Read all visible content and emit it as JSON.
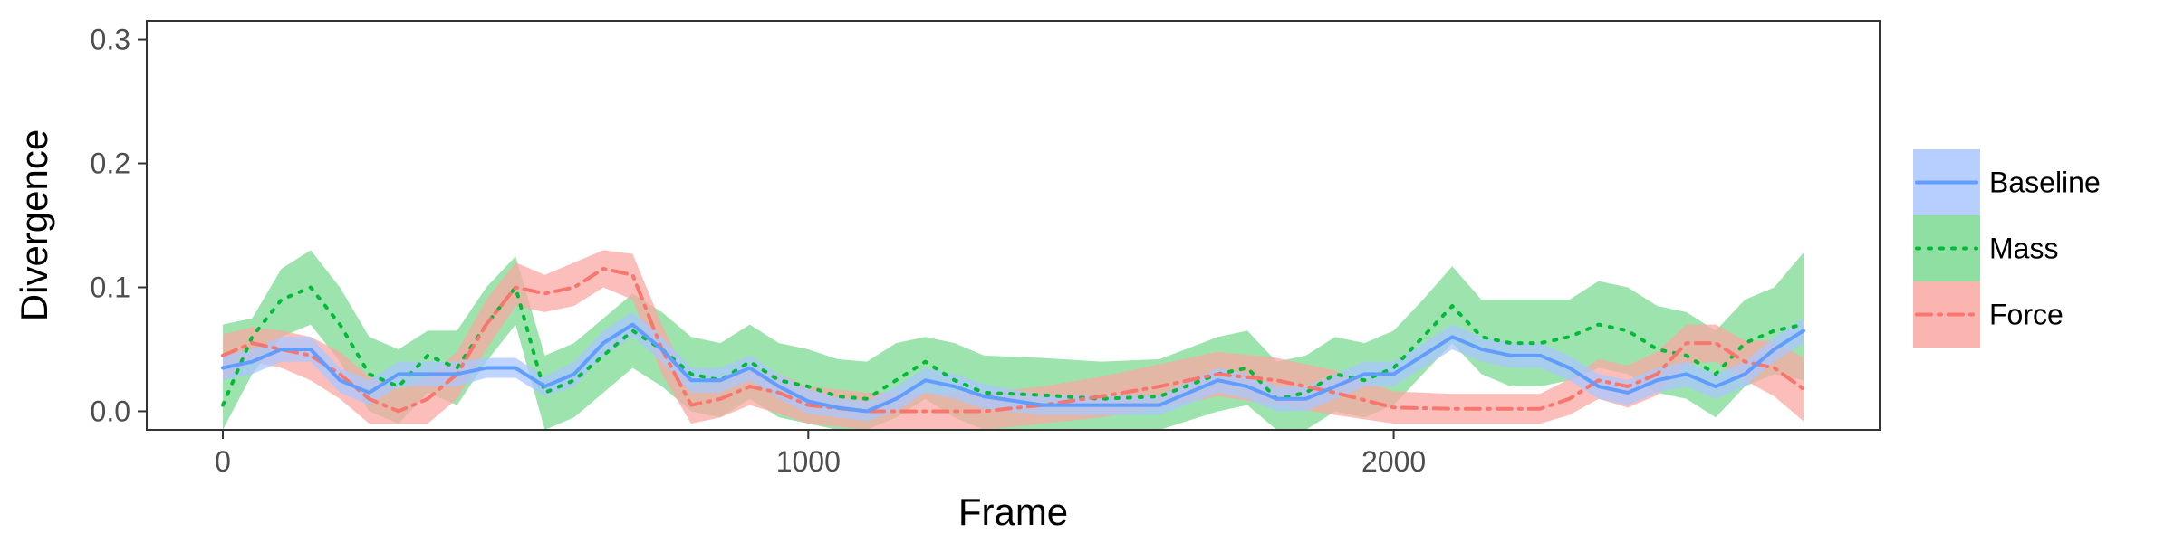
{
  "chart_data": {
    "type": "line",
    "title": "",
    "xlabel": "Frame",
    "ylabel": "Divergence",
    "xlim": [
      -130,
      2830
    ],
    "ylim": [
      -0.015,
      0.315
    ],
    "x_ticks": [
      0,
      1000,
      2000
    ],
    "x_tick_labels": [
      "0",
      "1000",
      "2000"
    ],
    "y_ticks": [
      0.0,
      0.1,
      0.2,
      0.3
    ],
    "y_tick_labels": [
      "0.0",
      "0.1",
      "0.2",
      "0.3"
    ],
    "grid": false,
    "legend_position": "right",
    "series": [
      {
        "name": "Mass",
        "color": "#00BA38",
        "band_color": "#7CD992",
        "line_style": "dotted",
        "x": [
          0,
          50,
          100,
          150,
          200,
          250,
          300,
          350,
          400,
          450,
          500,
          550,
          600,
          650,
          700,
          750,
          800,
          850,
          900,
          950,
          1000,
          1050,
          1100,
          1150,
          1200,
          1250,
          1300,
          1400,
          1500,
          1600,
          1700,
          1750,
          1800,
          1850,
          1900,
          1950,
          2000,
          2050,
          2100,
          2150,
          2200,
          2250,
          2300,
          2350,
          2400,
          2450,
          2500,
          2550,
          2600,
          2650,
          2700
        ],
        "y": [
          0.005,
          0.06,
          0.09,
          0.1,
          0.07,
          0.03,
          0.02,
          0.045,
          0.035,
          0.07,
          0.1,
          0.015,
          0.025,
          0.045,
          0.065,
          0.05,
          0.03,
          0.025,
          0.04,
          0.025,
          0.02,
          0.012,
          0.01,
          0.025,
          0.04,
          0.025,
          0.015,
          0.013,
          0.01,
          0.012,
          0.03,
          0.035,
          0.01,
          0.015,
          0.03,
          0.025,
          0.035,
          0.06,
          0.085,
          0.06,
          0.055,
          0.055,
          0.06,
          0.07,
          0.065,
          0.05,
          0.045,
          0.03,
          0.055,
          0.065,
          0.07
        ],
        "lower": [
          -0.025,
          0.03,
          0.06,
          0.07,
          0.04,
          0.0,
          -0.01,
          0.015,
          0.005,
          0.04,
          0.07,
          -0.015,
          -0.005,
          0.015,
          0.035,
          0.02,
          0.0,
          -0.005,
          0.01,
          -0.005,
          -0.01,
          -0.018,
          -0.02,
          -0.005,
          0.01,
          -0.005,
          -0.015,
          -0.017,
          -0.02,
          -0.018,
          0.0,
          0.005,
          -0.02,
          -0.015,
          0.0,
          -0.005,
          0.005,
          0.03,
          0.055,
          0.03,
          0.02,
          0.02,
          0.025,
          0.035,
          0.03,
          0.015,
          0.01,
          -0.005,
          0.02,
          0.03,
          0.025
        ],
        "upper": [
          0.07,
          0.075,
          0.115,
          0.13,
          0.1,
          0.06,
          0.05,
          0.065,
          0.065,
          0.1,
          0.125,
          0.045,
          0.055,
          0.075,
          0.095,
          0.08,
          0.06,
          0.055,
          0.07,
          0.055,
          0.05,
          0.042,
          0.04,
          0.055,
          0.06,
          0.055,
          0.045,
          0.043,
          0.04,
          0.042,
          0.06,
          0.065,
          0.04,
          0.045,
          0.06,
          0.055,
          0.065,
          0.09,
          0.117,
          0.09,
          0.09,
          0.09,
          0.09,
          0.105,
          0.1,
          0.085,
          0.08,
          0.065,
          0.09,
          0.1,
          0.128
        ]
      },
      {
        "name": "Force",
        "color": "#F8766D",
        "band_color": "#F9A8A3",
        "line_style": "dashdot",
        "x": [
          0,
          50,
          100,
          150,
          200,
          250,
          300,
          350,
          400,
          450,
          500,
          550,
          600,
          650,
          700,
          750,
          800,
          850,
          900,
          950,
          1000,
          1100,
          1200,
          1300,
          1400,
          1500,
          1600,
          1700,
          1800,
          1900,
          2000,
          2100,
          2200,
          2250,
          2300,
          2350,
          2400,
          2450,
          2500,
          2550,
          2600,
          2650,
          2700
        ],
        "y": [
          0.045,
          0.055,
          0.05,
          0.045,
          0.03,
          0.01,
          0.0,
          0.01,
          0.03,
          0.07,
          0.1,
          0.095,
          0.1,
          0.115,
          0.11,
          0.05,
          0.005,
          0.01,
          0.02,
          0.015,
          0.005,
          0.0,
          0.0,
          0.0,
          0.005,
          0.012,
          0.02,
          0.03,
          0.025,
          0.015,
          0.003,
          0.002,
          0.002,
          0.002,
          0.01,
          0.025,
          0.02,
          0.03,
          0.055,
          0.055,
          0.04,
          0.035,
          0.018
        ],
        "lower": [
          0.025,
          0.04,
          0.035,
          0.025,
          0.01,
          -0.01,
          -0.01,
          -0.01,
          0.01,
          0.05,
          0.085,
          0.08,
          0.085,
          0.1,
          0.09,
          0.03,
          -0.01,
          -0.005,
          0.005,
          -0.002,
          -0.01,
          -0.015,
          -0.015,
          -0.015,
          -0.01,
          -0.005,
          0.003,
          0.012,
          0.005,
          -0.003,
          -0.01,
          -0.01,
          -0.01,
          -0.01,
          -0.003,
          0.01,
          0.003,
          0.013,
          0.038,
          0.04,
          0.025,
          0.012,
          -0.008
        ],
        "upper": [
          0.062,
          0.068,
          0.065,
          0.06,
          0.048,
          0.028,
          0.018,
          0.028,
          0.048,
          0.09,
          0.12,
          0.11,
          0.12,
          0.13,
          0.127,
          0.07,
          0.02,
          0.025,
          0.035,
          0.03,
          0.02,
          0.015,
          0.015,
          0.015,
          0.02,
          0.028,
          0.038,
          0.048,
          0.043,
          0.033,
          0.016,
          0.014,
          0.014,
          0.014,
          0.026,
          0.042,
          0.037,
          0.048,
          0.07,
          0.07,
          0.057,
          0.057,
          0.043
        ]
      },
      {
        "name": "Baseline",
        "color": "#619CFF",
        "band_color": "#A9C7FF",
        "line_style": "solid",
        "x": [
          0,
          50,
          100,
          150,
          200,
          250,
          300,
          350,
          400,
          450,
          500,
          550,
          600,
          650,
          700,
          750,
          800,
          850,
          900,
          950,
          1000,
          1050,
          1100,
          1150,
          1200,
          1250,
          1300,
          1400,
          1500,
          1600,
          1700,
          1750,
          1800,
          1850,
          1900,
          1950,
          2000,
          2050,
          2100,
          2150,
          2200,
          2250,
          2300,
          2350,
          2400,
          2450,
          2500,
          2550,
          2600,
          2650,
          2700
        ],
        "y": [
          0.035,
          0.04,
          0.05,
          0.05,
          0.025,
          0.015,
          0.03,
          0.03,
          0.03,
          0.035,
          0.035,
          0.02,
          0.03,
          0.055,
          0.07,
          0.05,
          0.025,
          0.025,
          0.035,
          0.02,
          0.008,
          0.003,
          0.0,
          0.01,
          0.025,
          0.02,
          0.012,
          0.005,
          0.005,
          0.005,
          0.025,
          0.02,
          0.01,
          0.01,
          0.02,
          0.03,
          0.03,
          0.045,
          0.06,
          0.05,
          0.045,
          0.045,
          0.035,
          0.02,
          0.015,
          0.025,
          0.03,
          0.02,
          0.03,
          0.05,
          0.065
        ],
        "lower": [
          0.025,
          0.03,
          0.04,
          0.04,
          0.015,
          0.005,
          0.02,
          0.02,
          0.02,
          0.027,
          0.027,
          0.012,
          0.02,
          0.045,
          0.06,
          0.04,
          0.015,
          0.015,
          0.025,
          0.01,
          -0.002,
          -0.005,
          -0.008,
          0.0,
          0.015,
          0.01,
          0.002,
          -0.003,
          -0.003,
          -0.003,
          0.015,
          0.01,
          0.0,
          0.0,
          0.01,
          0.02,
          0.02,
          0.035,
          0.05,
          0.04,
          0.035,
          0.035,
          0.025,
          0.01,
          0.005,
          0.015,
          0.02,
          0.01,
          0.02,
          0.04,
          0.055
        ],
        "upper": [
          0.045,
          0.05,
          0.06,
          0.06,
          0.035,
          0.025,
          0.04,
          0.04,
          0.04,
          0.043,
          0.043,
          0.028,
          0.04,
          0.065,
          0.08,
          0.06,
          0.035,
          0.035,
          0.045,
          0.03,
          0.018,
          0.011,
          0.008,
          0.02,
          0.035,
          0.03,
          0.022,
          0.013,
          0.013,
          0.013,
          0.035,
          0.03,
          0.02,
          0.02,
          0.03,
          0.04,
          0.04,
          0.055,
          0.07,
          0.06,
          0.055,
          0.055,
          0.045,
          0.03,
          0.025,
          0.035,
          0.04,
          0.03,
          0.04,
          0.06,
          0.075
        ]
      }
    ],
    "legend": [
      {
        "name": "Baseline",
        "color": "#619CFF",
        "band_color": "#A9C7FF",
        "line_style": "solid"
      },
      {
        "name": "Mass",
        "color": "#00BA38",
        "band_color": "#7CD992",
        "line_style": "dotted"
      },
      {
        "name": "Force",
        "color": "#F8766D",
        "band_color": "#F9A8A3",
        "line_style": "dashdot"
      }
    ]
  }
}
